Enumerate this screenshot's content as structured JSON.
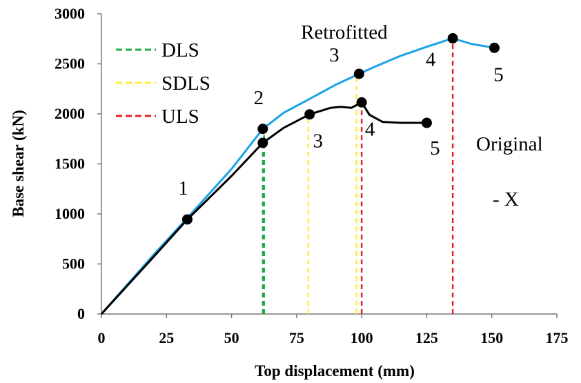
{
  "chart_data": {
    "type": "line",
    "title": "",
    "xlabel": "Top displacement (mm)",
    "ylabel": "Base shear (kN)",
    "xlim": [
      0,
      175
    ],
    "ylim": [
      0,
      3000
    ],
    "xticks": [
      "0",
      "25",
      "50",
      "75",
      "100",
      "125",
      "150",
      "175"
    ],
    "yticks": [
      "0",
      "500",
      "1000",
      "1500",
      "2000",
      "2500",
      "3000"
    ],
    "grid": false,
    "series": [
      {
        "name": "Retrofitted",
        "color": "#1aa3e8",
        "points": [
          [
            0,
            0
          ],
          [
            20,
            590
          ],
          [
            33,
            960
          ],
          [
            50,
            1450
          ],
          [
            62,
            1850
          ],
          [
            70,
            2010
          ],
          [
            80,
            2150
          ],
          [
            90,
            2290
          ],
          [
            99,
            2400
          ],
          [
            105,
            2470
          ],
          [
            115,
            2580
          ],
          [
            125,
            2670
          ],
          [
            135,
            2755
          ],
          [
            142,
            2700
          ],
          [
            151,
            2660
          ]
        ],
        "markers": [
          {
            "x": 62,
            "y": 1850,
            "label": "2"
          },
          {
            "x": 99,
            "y": 2400,
            "label": "3"
          },
          {
            "x": 135,
            "y": 2755,
            "label": "4"
          },
          {
            "x": 151,
            "y": 2660,
            "label": "5"
          }
        ]
      },
      {
        "name": "Original",
        "color": "#000000",
        "points": [
          [
            0,
            0
          ],
          [
            20,
            570
          ],
          [
            33,
            945
          ],
          [
            50,
            1380
          ],
          [
            62,
            1710
          ],
          [
            70,
            1860
          ],
          [
            80,
            1995
          ],
          [
            88,
            2060
          ],
          [
            92,
            2070
          ],
          [
            96,
            2060
          ],
          [
            100,
            2115
          ],
          [
            103,
            1990
          ],
          [
            108,
            1920
          ],
          [
            115,
            1910
          ],
          [
            125,
            1910
          ]
        ],
        "markers": [
          {
            "x": 33,
            "y": 945,
            "label": "1"
          },
          {
            "x": 62,
            "y": 1710,
            "label": ""
          },
          {
            "x": 80,
            "y": 1995,
            "label": "3"
          },
          {
            "x": 100,
            "y": 2115,
            "label": "4"
          },
          {
            "x": 125,
            "y": 1910,
            "label": "5"
          }
        ]
      }
    ],
    "limit_states": [
      {
        "name": "DLS",
        "color": "#22aa44"
      },
      {
        "name": "SDLS",
        "color": "#ffee33"
      },
      {
        "name": "ULS",
        "color": "#e82020"
      }
    ],
    "limit_lines": [
      {
        "state": "DLS",
        "x": 62,
        "y_top": 1710
      },
      {
        "state": "DLS",
        "x": 62.5,
        "y_top": 1850
      },
      {
        "state": "SDLS",
        "x": 79.5,
        "y_top": 1995
      },
      {
        "state": "SDLS",
        "x": 98,
        "y_top": 2400
      },
      {
        "state": "ULS",
        "x": 100,
        "y_top": 2115
      },
      {
        "state": "ULS",
        "x": 135,
        "y_top": 2755
      }
    ],
    "annotations": {
      "retrofitted": "Retrofitted",
      "original": "Original",
      "direction": "- X"
    },
    "legend_position": "top-left"
  }
}
